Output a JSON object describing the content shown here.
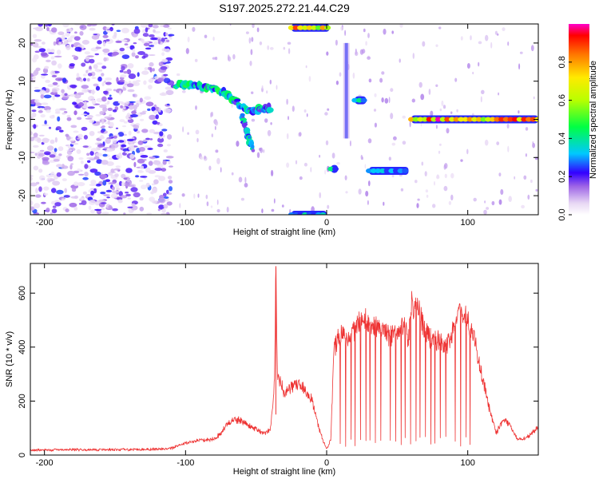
{
  "title": "S197.2025.272.21.44.C29",
  "chart_data": [
    {
      "type": "heatmap",
      "title": "S197.2025.272.21.44.C29",
      "xlabel": "Height of straight line (km)",
      "ylabel": "Frequency (Hz)",
      "xlim": [
        -210,
        150
      ],
      "ylim": [
        -25,
        25
      ],
      "xticks": [
        -200,
        -100,
        0,
        100
      ],
      "yticks": [
        -20,
        -10,
        0,
        10,
        20
      ],
      "colorbar": {
        "label": "Normalized spectral amplitude",
        "range": [
          0,
          1
        ],
        "ticks": [
          0.0,
          0.2,
          0.4,
          0.6,
          0.8
        ]
      },
      "features": [
        {
          "name": "broadband noise",
          "x": [
            -210,
            -110
          ],
          "freq": [
            -25,
            25
          ],
          "amplitude": 0.15
        },
        {
          "name": "descending trace",
          "points": [
            [
              -108,
              9
            ],
            [
              -100,
              9
            ],
            [
              -90,
              9
            ],
            [
              -80,
              8
            ],
            [
              -72,
              7
            ],
            [
              -65,
              5
            ],
            [
              -58,
              3
            ],
            [
              -52,
              2
            ],
            [
              -45,
              3
            ],
            [
              -40,
              3
            ]
          ],
          "amplitude": 0.35
        },
        {
          "name": "descending branch",
          "points": [
            [
              -60,
              1
            ],
            [
              -56,
              -4
            ],
            [
              -52,
              -8
            ]
          ],
          "amplitude": 0.3
        },
        {
          "name": "line 24 Hz",
          "x": [
            -25,
            2
          ],
          "freq": 24,
          "amplitude": 0.9
        },
        {
          "name": "line -25 Hz",
          "x": [
            -25,
            0
          ],
          "freq": -25,
          "amplitude": 0.4
        },
        {
          "name": "line -13 Hz",
          "x": [
            3,
            8
          ],
          "freq": -13,
          "amplitude": 0.4
        },
        {
          "name": "vertical streak",
          "x": 14,
          "freq": [
            -5,
            20
          ],
          "amplitude": 0.25
        },
        {
          "name": "line 5 Hz",
          "x": [
            20,
            28
          ],
          "freq": 5,
          "amplitude": 0.4
        },
        {
          "name": "line -13.5 Hz",
          "x": [
            30,
            58
          ],
          "freq": -13.5,
          "amplitude": 0.4
        },
        {
          "name": "line 0 Hz",
          "x": [
            60,
            150
          ],
          "freq": 0,
          "amplitude": 0.95
        }
      ]
    },
    {
      "type": "line",
      "xlabel": "Height of straight line (km)",
      "ylabel": "SNR (10 * v/v)",
      "xlim": [
        -210,
        150
      ],
      "ylim": [
        0,
        710
      ],
      "xticks": [
        -200,
        -100,
        0,
        100
      ],
      "yticks": [
        0,
        200,
        400,
        600
      ],
      "series": [
        {
          "name": "SNR",
          "color": "#ee3333",
          "x": [
            -210,
            -180,
            -150,
            -120,
            -110,
            -100,
            -90,
            -80,
            -75,
            -70,
            -65,
            -60,
            -55,
            -50,
            -45,
            -40,
            -37,
            -36,
            -35,
            -30,
            -25,
            -20,
            -15,
            -10,
            -5,
            0,
            3,
            5,
            10,
            15,
            20,
            25,
            30,
            35,
            40,
            45,
            50,
            55,
            58,
            60,
            65,
            70,
            75,
            80,
            85,
            90,
            95,
            100,
            105,
            110,
            115,
            120,
            125,
            130,
            135,
            140,
            145,
            150
          ],
          "values": [
            18,
            20,
            20,
            22,
            25,
            45,
            55,
            60,
            80,
            120,
            130,
            125,
            110,
            95,
            80,
            90,
            260,
            700,
            300,
            230,
            250,
            260,
            240,
            200,
            90,
            20,
            60,
            380,
            460,
            420,
            470,
            510,
            490,
            470,
            460,
            440,
            450,
            480,
            430,
            560,
            540,
            450,
            430,
            420,
            400,
            470,
            540,
            500,
            420,
            300,
            180,
            80,
            130,
            110,
            60,
            60,
            80,
            100
          ]
        }
      ]
    }
  ]
}
